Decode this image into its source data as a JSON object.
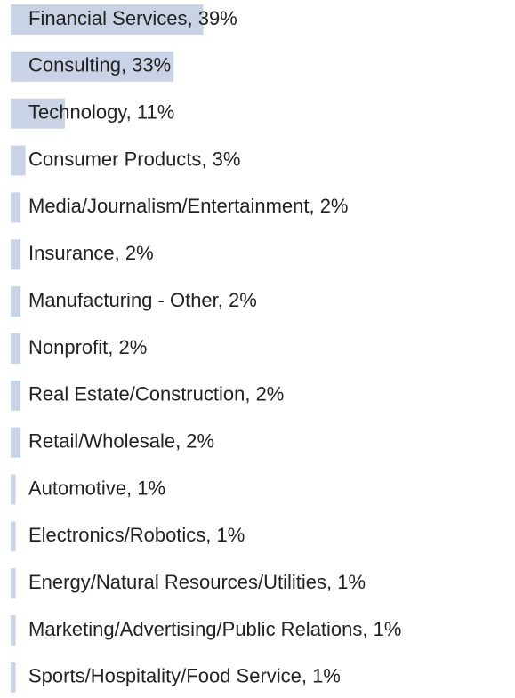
{
  "chart_data": {
    "type": "bar",
    "orientation": "horizontal",
    "color": "#c9d3e5",
    "labels": [
      "Financial Services, 39%",
      "Consulting, 33%",
      "Technology, 11%",
      "Consumer Products, 3%",
      "Media/Journalism/Entertainment, 2%",
      "Insurance, 2%",
      "Manufacturing - Other, 2%",
      "Nonprofit, 2%",
      "Real Estate/Construction, 2%",
      "Retail/Wholesale, 2%",
      "Automotive, 1%",
      "Electronics/Robotics, 1%",
      "Energy/Natural Resources/Utilities, 1%",
      "Marketing/Advertising/Public Relations, 1%",
      "Sports/Hospitality/Food Service, 1%"
    ],
    "values": [
      39,
      33,
      11,
      3,
      2,
      2,
      2,
      2,
      2,
      2,
      1,
      1,
      1,
      1,
      1
    ]
  }
}
